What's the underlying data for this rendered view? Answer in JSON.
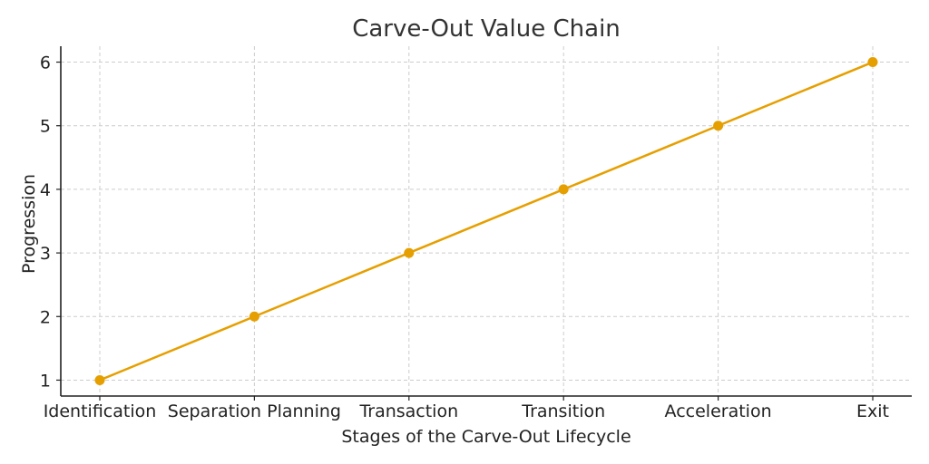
{
  "chart_data": {
    "type": "line",
    "title": "Carve-Out Value Chain",
    "xlabel": "Stages of the Carve-Out Lifecycle",
    "ylabel": "Progression",
    "categories": [
      "Identification",
      "Separation Planning",
      "Transaction",
      "Transition",
      "Acceleration",
      "Exit"
    ],
    "series": [
      {
        "name": "Progression",
        "values": [
          1,
          2,
          3,
          4,
          5,
          6
        ],
        "color": "#E69F00",
        "marker": "circle"
      }
    ],
    "yticks": [
      1,
      2,
      3,
      4,
      5,
      6
    ],
    "ylim": [
      0.75,
      6.25
    ],
    "grid": true,
    "legend": null
  }
}
